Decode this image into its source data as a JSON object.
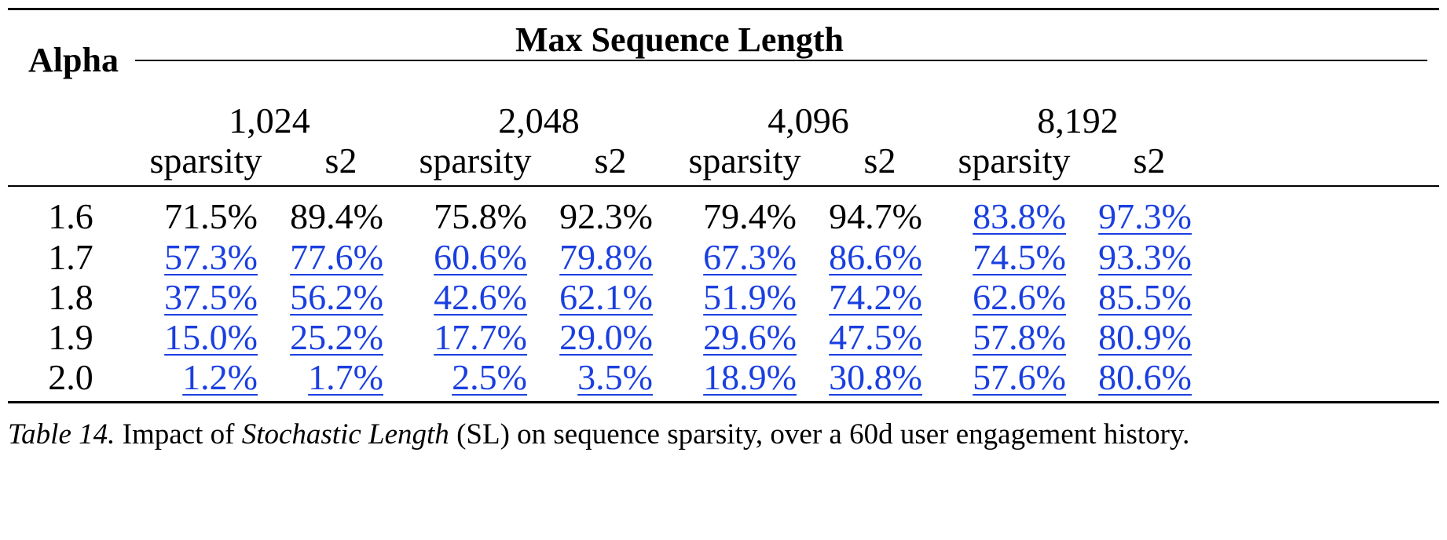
{
  "table": {
    "row_header": "Alpha",
    "group_header": "Max Sequence Length",
    "lengths": [
      "1,024",
      "2,048",
      "4,096",
      "8,192"
    ],
    "sub_headers": [
      "sparsity",
      "s2"
    ],
    "rows": [
      {
        "alpha": "1.6",
        "cells": [
          "71.5%",
          "89.4%",
          "75.8%",
          "92.3%",
          "79.4%",
          "94.7%",
          "83.8%",
          "97.3%"
        ],
        "links": [
          false,
          false,
          false,
          false,
          false,
          false,
          true,
          true
        ]
      },
      {
        "alpha": "1.7",
        "cells": [
          "57.3%",
          "77.6%",
          "60.6%",
          "79.8%",
          "67.3%",
          "86.6%",
          "74.5%",
          "93.3%"
        ],
        "links": [
          true,
          true,
          true,
          true,
          true,
          true,
          true,
          true
        ]
      },
      {
        "alpha": "1.8",
        "cells": [
          "37.5%",
          "56.2%",
          "42.6%",
          "62.1%",
          "51.9%",
          "74.2%",
          "62.6%",
          "85.5%"
        ],
        "links": [
          true,
          true,
          true,
          true,
          true,
          true,
          true,
          true
        ]
      },
      {
        "alpha": "1.9",
        "cells": [
          "15.0%",
          "25.2%",
          "17.7%",
          "29.0%",
          "29.6%",
          "47.5%",
          "57.8%",
          "80.9%"
        ],
        "links": [
          true,
          true,
          true,
          true,
          true,
          true,
          true,
          true
        ]
      },
      {
        "alpha": "2.0",
        "cells": [
          "1.2%",
          "1.7%",
          "2.5%",
          "3.5%",
          "18.9%",
          "30.8%",
          "57.6%",
          "80.6%"
        ],
        "links": [
          true,
          true,
          true,
          true,
          true,
          true,
          true,
          true
        ]
      }
    ]
  },
  "caption": {
    "label": "Table 14.",
    "text_before": " Impact of ",
    "emphasis": "Stochastic Length",
    "text_after": " (SL) on sequence sparsity, over a 60d user engagement history."
  },
  "colors": {
    "link": "#1a3fe0",
    "text": "#000000"
  }
}
